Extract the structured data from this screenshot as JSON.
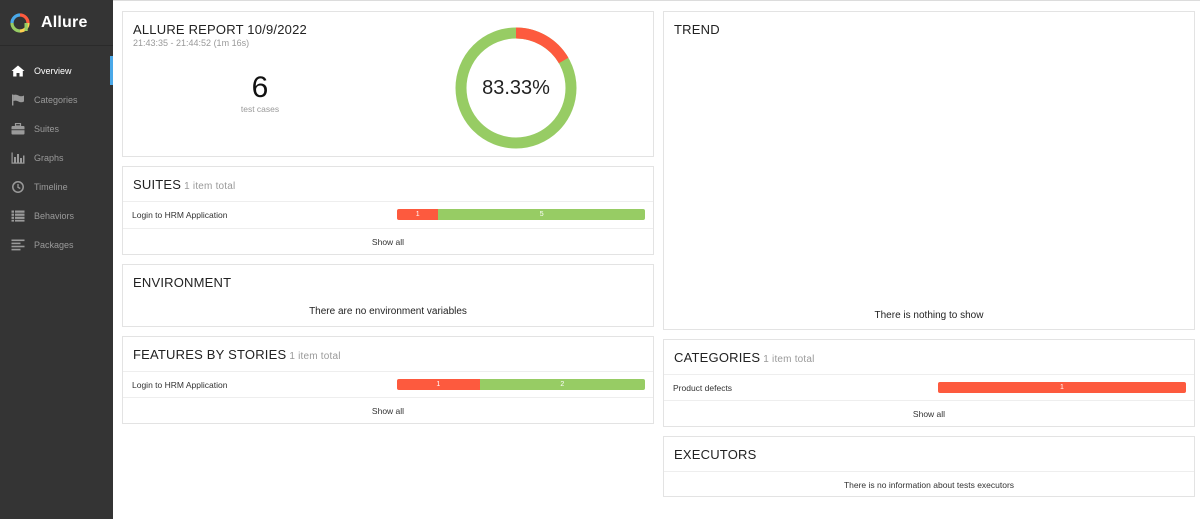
{
  "app": {
    "name": "Allure"
  },
  "sidebar": {
    "items": [
      {
        "label": "Overview",
        "icon": "home-icon"
      },
      {
        "label": "Categories",
        "icon": "flag-icon"
      },
      {
        "label": "Suites",
        "icon": "briefcase-icon"
      },
      {
        "label": "Graphs",
        "icon": "bar-chart-icon"
      },
      {
        "label": "Timeline",
        "icon": "clock-icon"
      },
      {
        "label": "Behaviors",
        "icon": "list-icon"
      },
      {
        "label": "Packages",
        "icon": "align-left-icon"
      }
    ]
  },
  "summary": {
    "title": "ALLURE REPORT 10/9/2022",
    "time_range": "21:43:35 - 21:44:52 (1m 16s)",
    "test_count": "6",
    "test_count_label": "test cases",
    "percent": "83.33%",
    "passed_fraction": 0.8333,
    "failed_fraction": 0.1667
  },
  "suites": {
    "title": "SUITES",
    "count": "1 item total",
    "rows": [
      {
        "name": "Login to HRM Application",
        "failed": 1,
        "passed": 5,
        "failed_label": "1",
        "passed_label": "5"
      }
    ],
    "show_all": "Show all"
  },
  "environment": {
    "title": "ENVIRONMENT",
    "message": "There are no environment variables"
  },
  "features": {
    "title": "FEATURES BY STORIES",
    "count": "1 item total",
    "rows": [
      {
        "name": "Login to HRM Application",
        "failed": 1,
        "passed": 2,
        "failed_label": "1",
        "passed_label": "2"
      }
    ],
    "show_all": "Show all"
  },
  "trend": {
    "title": "TREND",
    "message": "There is nothing to show"
  },
  "categories": {
    "title": "CATEGORIES",
    "count": "1 item total",
    "rows": [
      {
        "name": "Product defects",
        "count": 1,
        "count_label": "1"
      }
    ],
    "show_all": "Show all"
  },
  "executors": {
    "title": "EXECUTORS",
    "message": "There is no information about tests executors"
  },
  "colors": {
    "failed": "#fd5a3e",
    "passed": "#97cc64",
    "sidebar": "#343434",
    "accent": "#4aa8e8"
  }
}
